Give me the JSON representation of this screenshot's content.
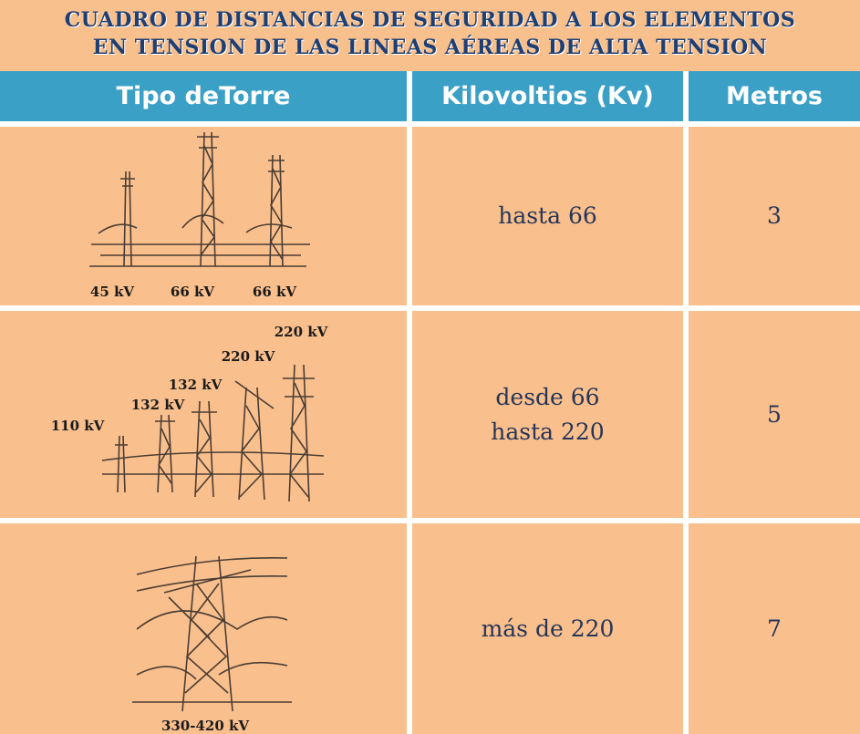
{
  "header": {
    "title_lines": [
      "CUADRO DE DISTANCIAS DE SEGURIDAD A LOS ELEMENTOS",
      "EN TENSION DE LAS LINEAS AÉREAS DE ALTA TENSION"
    ]
  },
  "table": {
    "columns": [
      "Tipo deTorre",
      "Kilovoltios (Kv)",
      "Metros"
    ],
    "rows": [
      {
        "tower_labels": [
          "45 kV",
          "66 kV",
          "66 kV"
        ],
        "kv": [
          "hasta 66"
        ],
        "metros": 3
      },
      {
        "tower_labels": [
          "110 kV",
          "132 kV",
          "132 kV",
          "220 kV",
          "220 kV"
        ],
        "kv": [
          "desde 66",
          "hasta 220"
        ],
        "metros": 5
      },
      {
        "tower_labels": [
          "330-420 kV"
        ],
        "kv": [
          "más de 220"
        ],
        "metros": 7
      }
    ]
  }
}
